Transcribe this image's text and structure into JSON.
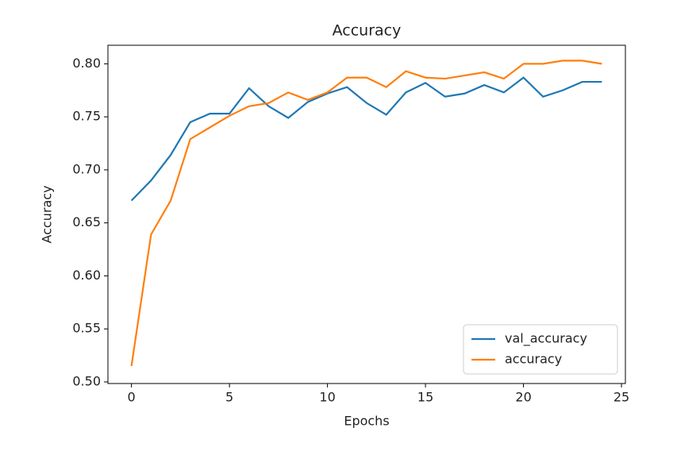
{
  "chart_data": {
    "type": "line",
    "title": "Accuracy",
    "x_label": "Epochs",
    "y_label": "Accuracy",
    "x": [
      0,
      1,
      2,
      3,
      4,
      5,
      6,
      7,
      8,
      9,
      10,
      11,
      12,
      13,
      14,
      15,
      16,
      17,
      18,
      19,
      20,
      21,
      22,
      23,
      24
    ],
    "series": [
      {
        "name": "val_accuracy",
        "color": "#1f77b4",
        "values": [
          0.671,
          0.69,
          0.714,
          0.745,
          0.753,
          0.753,
          0.777,
          0.76,
          0.749,
          0.764,
          0.772,
          0.778,
          0.763,
          0.752,
          0.773,
          0.782,
          0.769,
          0.772,
          0.78,
          0.773,
          0.787,
          0.769,
          0.775,
          0.783,
          0.783
        ]
      },
      {
        "name": "accuracy",
        "color": "#ff7f0e",
        "values": [
          0.515,
          0.639,
          0.671,
          0.729,
          0.74,
          0.751,
          0.76,
          0.763,
          0.773,
          0.766,
          0.773,
          0.787,
          0.787,
          0.778,
          0.793,
          0.787,
          0.786,
          0.789,
          0.792,
          0.786,
          0.8,
          0.8,
          0.803,
          0.803,
          0.8
        ]
      }
    ],
    "xlim": [
      -1.2,
      25.2
    ],
    "xticks": [
      0,
      5,
      10,
      15,
      20,
      25
    ],
    "ylim": [
      0.4985,
      0.8175
    ],
    "yticks": [
      {
        "value": 0.5,
        "label": "0.50"
      },
      0.55,
      {
        "value": 0.6,
        "label": "0.60"
      },
      0.65,
      {
        "value": 0.7,
        "label": "0.70"
      },
      0.75,
      {
        "value": 0.8,
        "label": "0.80"
      }
    ],
    "grid": false,
    "legend": "lower right"
  }
}
